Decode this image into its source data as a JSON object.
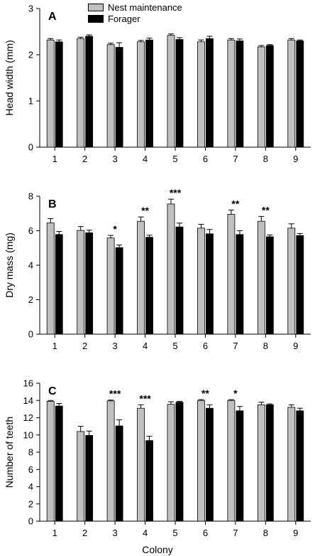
{
  "legend": [
    {
      "label": "Nest maintenance",
      "color": "#c0c0c0"
    },
    {
      "label": "Forager",
      "color": "#000000"
    }
  ],
  "x_title": "Colony",
  "chart_data": [
    {
      "type": "bar",
      "panel": "A",
      "ylabel": "Head width (mm)",
      "xlabel": "",
      "ylim": [
        0,
        3
      ],
      "yticks": [
        0,
        1,
        2,
        3
      ],
      "categories": [
        "1",
        "2",
        "3",
        "4",
        "5",
        "6",
        "7",
        "8",
        "9"
      ],
      "series": [
        {
          "name": "Nest maintenance",
          "color": "#c0c0c0",
          "values": [
            2.32,
            2.35,
            2.22,
            2.28,
            2.42,
            2.28,
            2.32,
            2.17,
            2.32
          ],
          "errors": [
            0.03,
            0.03,
            0.03,
            0.03,
            0.03,
            0.04,
            0.03,
            0.03,
            0.03
          ]
        },
        {
          "name": "Forager",
          "color": "#000000",
          "values": [
            2.28,
            2.4,
            2.16,
            2.32,
            2.33,
            2.35,
            2.3,
            2.2,
            2.3
          ],
          "errors": [
            0.04,
            0.03,
            0.1,
            0.04,
            0.04,
            0.05,
            0.04,
            0.02,
            0.02
          ]
        }
      ],
      "significance": [
        "",
        "",
        "",
        "",
        "",
        "",
        "",
        "",
        ""
      ]
    },
    {
      "type": "bar",
      "panel": "B",
      "ylabel": "Dry mass (mg)",
      "xlabel": "",
      "ylim": [
        0,
        8
      ],
      "yticks": [
        0,
        2,
        4,
        6,
        8
      ],
      "categories": [
        "1",
        "2",
        "3",
        "4",
        "5",
        "6",
        "7",
        "8",
        "9"
      ],
      "series": [
        {
          "name": "Nest maintenance",
          "color": "#c0c0c0",
          "values": [
            6.45,
            6.02,
            5.58,
            6.55,
            7.55,
            6.15,
            6.95,
            6.55,
            6.15
          ],
          "errors": [
            0.25,
            0.22,
            0.15,
            0.25,
            0.28,
            0.22,
            0.25,
            0.28,
            0.25
          ]
        },
        {
          "name": "Forager",
          "color": "#000000",
          "values": [
            5.78,
            5.88,
            5.02,
            5.62,
            6.22,
            5.82,
            5.78,
            5.65,
            5.72
          ],
          "errors": [
            0.18,
            0.15,
            0.15,
            0.12,
            0.22,
            0.25,
            0.22,
            0.1,
            0.12
          ]
        }
      ],
      "significance": [
        "",
        "",
        "*",
        "**",
        "***",
        "",
        "**",
        "**",
        ""
      ]
    },
    {
      "type": "bar",
      "panel": "C",
      "ylabel": "Number of teeth",
      "xlabel": "Colony",
      "ylim": [
        0,
        16
      ],
      "yticks": [
        0,
        2,
        4,
        6,
        8,
        10,
        12,
        14,
        16
      ],
      "categories": [
        "1",
        "2",
        "3",
        "4",
        "5",
        "6",
        "7",
        "8",
        "9"
      ],
      "series": [
        {
          "name": "Nest maintenance",
          "color": "#c0c0c0",
          "values": [
            13.9,
            10.4,
            13.95,
            13.1,
            13.55,
            14.0,
            14.0,
            13.5,
            13.2
          ],
          "errors": [
            0.1,
            0.6,
            0.1,
            0.4,
            0.3,
            0.1,
            0.1,
            0.3,
            0.3
          ]
        },
        {
          "name": "Forager",
          "color": "#000000",
          "values": [
            13.35,
            9.95,
            11.05,
            9.35,
            13.8,
            13.1,
            12.8,
            13.5,
            12.8
          ],
          "errors": [
            0.3,
            0.5,
            0.7,
            0.5,
            0.1,
            0.4,
            0.5,
            0.1,
            0.3
          ]
        }
      ],
      "significance": [
        "",
        "",
        "***",
        "***",
        "",
        "**",
        "*",
        "",
        ""
      ]
    }
  ]
}
